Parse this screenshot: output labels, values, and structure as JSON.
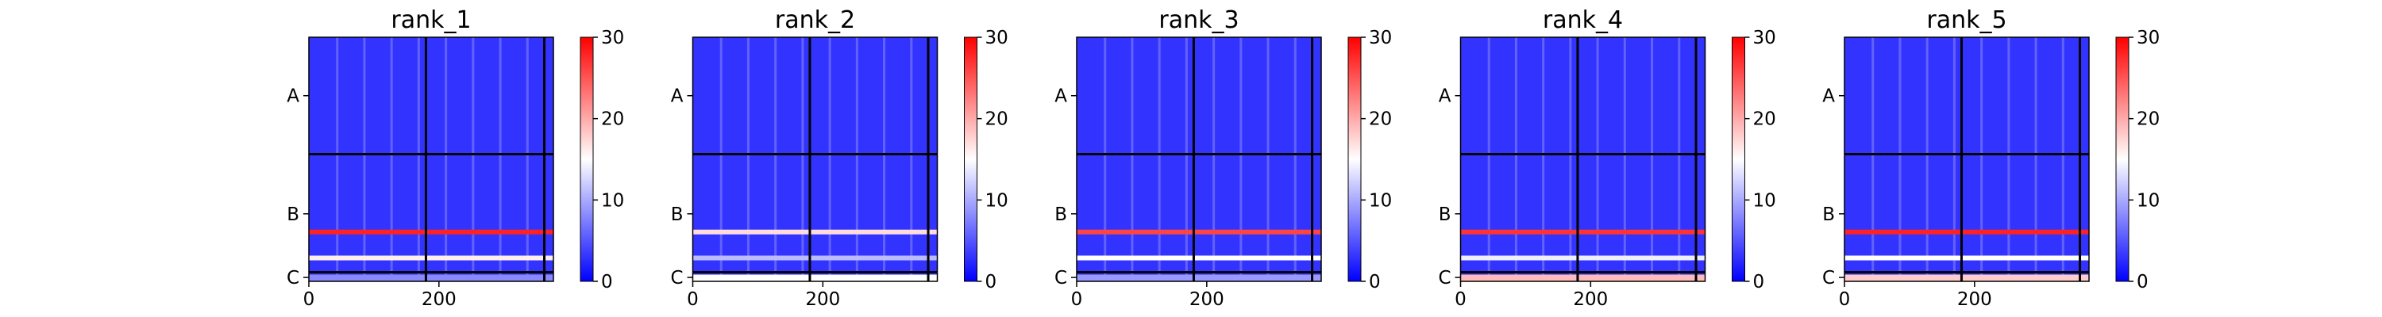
{
  "chart_data": {
    "type": "heatmap",
    "colormap": [
      "#0000ff",
      "#ffffff",
      "#ff0000"
    ],
    "divider_color": "#000000",
    "shared": {
      "x_range": [
        0,
        376
      ],
      "y_range": [
        0,
        376
      ],
      "x_ticks": [
        0,
        200
      ],
      "y_ticks": [
        {
          "label": "A",
          "at": 90
        },
        {
          "label": "B",
          "at": 272
        },
        {
          "label": "C",
          "at": 370
        }
      ],
      "chain_boundaries": [
        180,
        362
      ],
      "colorbar": {
        "min": 0,
        "max": 30,
        "ticks": [
          0,
          10,
          20,
          30
        ]
      }
    },
    "panels": [
      {
        "title": "rank_1",
        "bright_rows": [
          {
            "at": 300,
            "value": 28
          },
          {
            "at": 340,
            "value": 16
          }
        ],
        "bottom_row_value": 8
      },
      {
        "title": "rank_2",
        "bright_rows": [
          {
            "at": 300,
            "value": 17
          },
          {
            "at": 340,
            "value": 11
          }
        ],
        "bottom_row_value": 15
      },
      {
        "title": "rank_3",
        "bright_rows": [
          {
            "at": 300,
            "value": 26
          },
          {
            "at": 340,
            "value": 15
          }
        ],
        "bottom_row_value": 9
      },
      {
        "title": "rank_4",
        "bright_rows": [
          {
            "at": 300,
            "value": 27
          },
          {
            "at": 340,
            "value": 14
          }
        ],
        "bottom_row_value": 19
      },
      {
        "title": "rank_5",
        "bright_rows": [
          {
            "at": 300,
            "value": 28
          },
          {
            "at": 340,
            "value": 15
          }
        ],
        "bottom_row_value": 18
      }
    ]
  }
}
